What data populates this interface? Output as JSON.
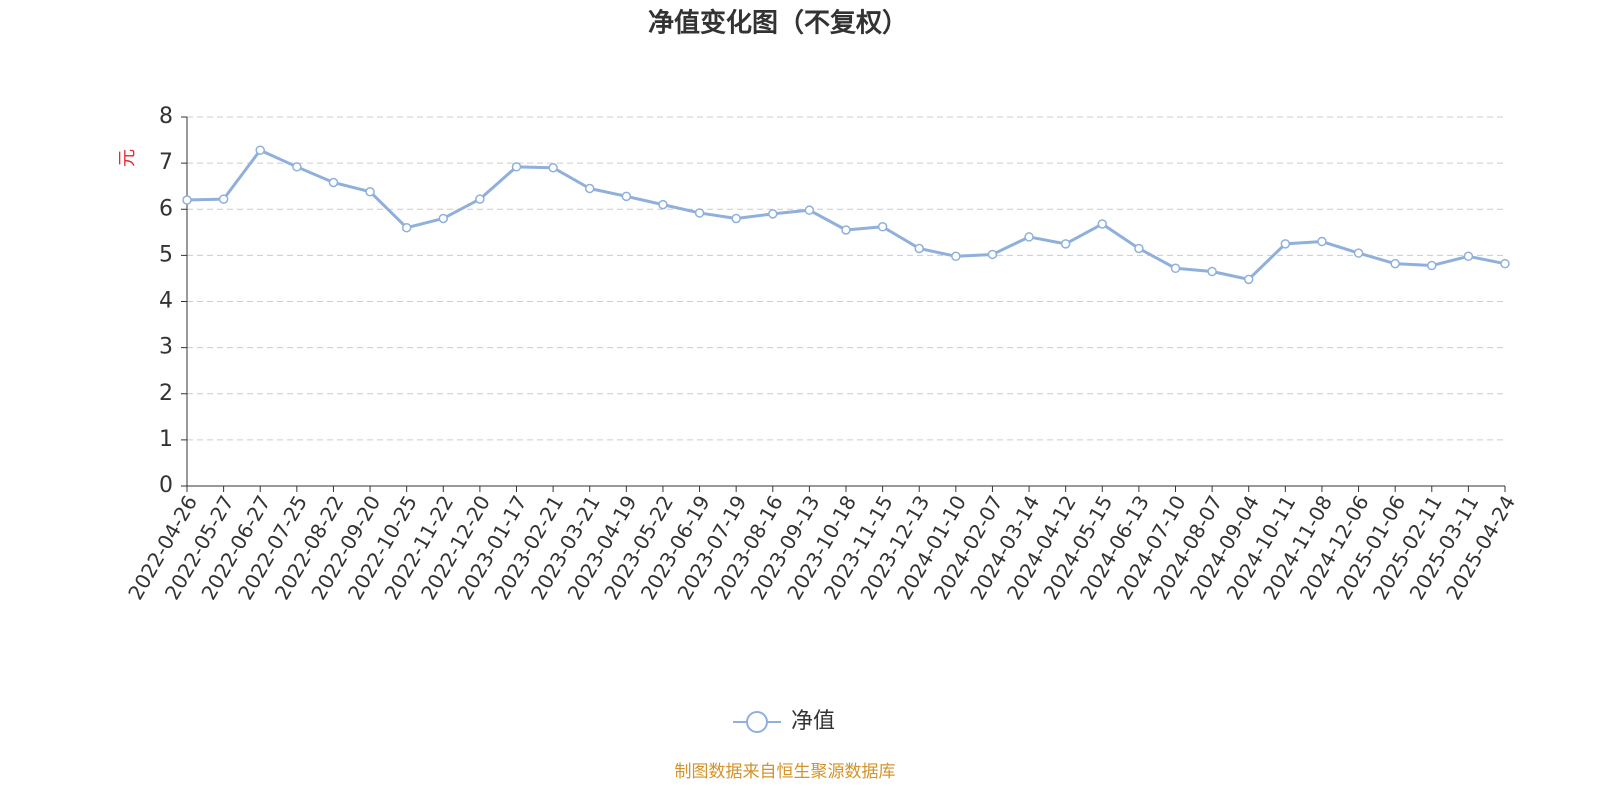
{
  "chart_data": {
    "type": "line",
    "title": "净值变化图（不复权）",
    "y_label": "元",
    "x": [
      "2022-04-26",
      "2022-05-27",
      "2022-06-27",
      "2022-07-25",
      "2022-08-22",
      "2022-09-20",
      "2022-10-25",
      "2022-11-22",
      "2022-12-20",
      "2023-01-17",
      "2023-02-21",
      "2023-03-21",
      "2023-04-19",
      "2023-05-22",
      "2023-06-19",
      "2023-07-19",
      "2023-08-16",
      "2023-09-13",
      "2023-10-18",
      "2023-11-15",
      "2023-12-13",
      "2024-01-10",
      "2024-02-07",
      "2024-03-14",
      "2024-04-12",
      "2024-05-15",
      "2024-06-13",
      "2024-07-10",
      "2024-08-07",
      "2024-09-04",
      "2024-10-11",
      "2024-11-08",
      "2024-12-06",
      "2025-01-06",
      "2025-02-11",
      "2025-03-11",
      "2025-04-24"
    ],
    "series": [
      {
        "name": "净值",
        "color": "#8fb0dc",
        "values": [
          6.2,
          6.22,
          7.28,
          6.92,
          6.58,
          6.38,
          5.6,
          5.8,
          6.22,
          6.92,
          6.9,
          6.45,
          6.28,
          6.1,
          5.92,
          5.8,
          5.9,
          5.98,
          5.55,
          5.62,
          5.15,
          4.98,
          5.02,
          5.4,
          5.25,
          5.68,
          5.15,
          4.72,
          4.65,
          4.48,
          5.25,
          5.3,
          5.05,
          4.82,
          4.78,
          4.98,
          4.82
        ]
      }
    ],
    "ylim": [
      0,
      8
    ],
    "yticks": [
      0,
      1,
      2,
      3,
      4,
      5,
      6,
      7,
      8
    ],
    "grid": true,
    "legend": "bottom",
    "source": "制图数据来自恒生聚源数据库"
  }
}
